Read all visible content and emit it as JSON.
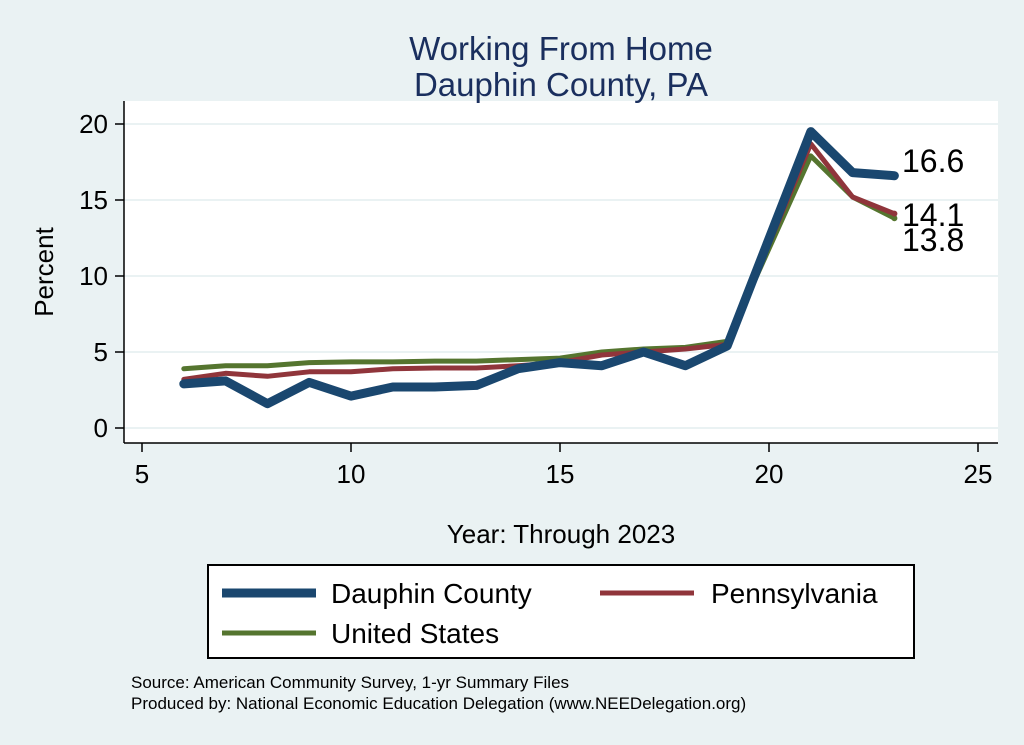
{
  "chart_data": {
    "type": "line",
    "title": "Working From Home",
    "subtitle": "Dauphin County, PA",
    "xlabel": "Year: Through 2023",
    "ylabel": "Percent",
    "xlim": [
      5,
      25
    ],
    "ylim": [
      0,
      20
    ],
    "x_ticks": [
      5,
      10,
      15,
      20,
      25
    ],
    "y_ticks": [
      0,
      5,
      10,
      15,
      20
    ],
    "grid": true,
    "legend_position": "bottom",
    "series": [
      {
        "name": "Dauphin County",
        "color": "#1a476f",
        "x": [
          6,
          7,
          8,
          9,
          10,
          11,
          12,
          13,
          14,
          15,
          16,
          17,
          18,
          19,
          21,
          22,
          23
        ],
        "values": [
          2.9,
          3.1,
          1.6,
          3.0,
          2.1,
          2.7,
          2.7,
          2.8,
          3.9,
          4.3,
          4.1,
          5.0,
          4.1,
          5.4,
          19.5,
          16.8,
          16.6
        ],
        "end_label": "16.6"
      },
      {
        "name": "Pennsylvania",
        "color": "#90353b",
        "x": [
          6,
          7,
          8,
          9,
          10,
          11,
          12,
          13,
          14,
          15,
          16,
          17,
          18,
          19,
          21,
          22,
          23
        ],
        "values": [
          3.2,
          3.6,
          3.4,
          3.7,
          3.7,
          3.9,
          3.95,
          3.95,
          4.1,
          4.3,
          4.8,
          5.0,
          5.2,
          5.5,
          18.7,
          15.2,
          14.1
        ],
        "end_label": "14.1"
      },
      {
        "name": "United States",
        "color": "#55752f",
        "x": [
          6,
          7,
          8,
          9,
          10,
          11,
          12,
          13,
          14,
          15,
          16,
          17,
          18,
          19,
          21,
          22,
          23
        ],
        "values": [
          3.9,
          4.1,
          4.1,
          4.3,
          4.35,
          4.35,
          4.4,
          4.4,
          4.5,
          4.6,
          5.0,
          5.2,
          5.3,
          5.7,
          17.9,
          15.2,
          13.8
        ],
        "end_label": "13.8"
      }
    ]
  },
  "notes": {
    "source": "Source: American Community Survey, 1-yr Summary Files",
    "produced": "Produced by: National Economic Education Delegation (www.NEEDelegation.org)"
  }
}
